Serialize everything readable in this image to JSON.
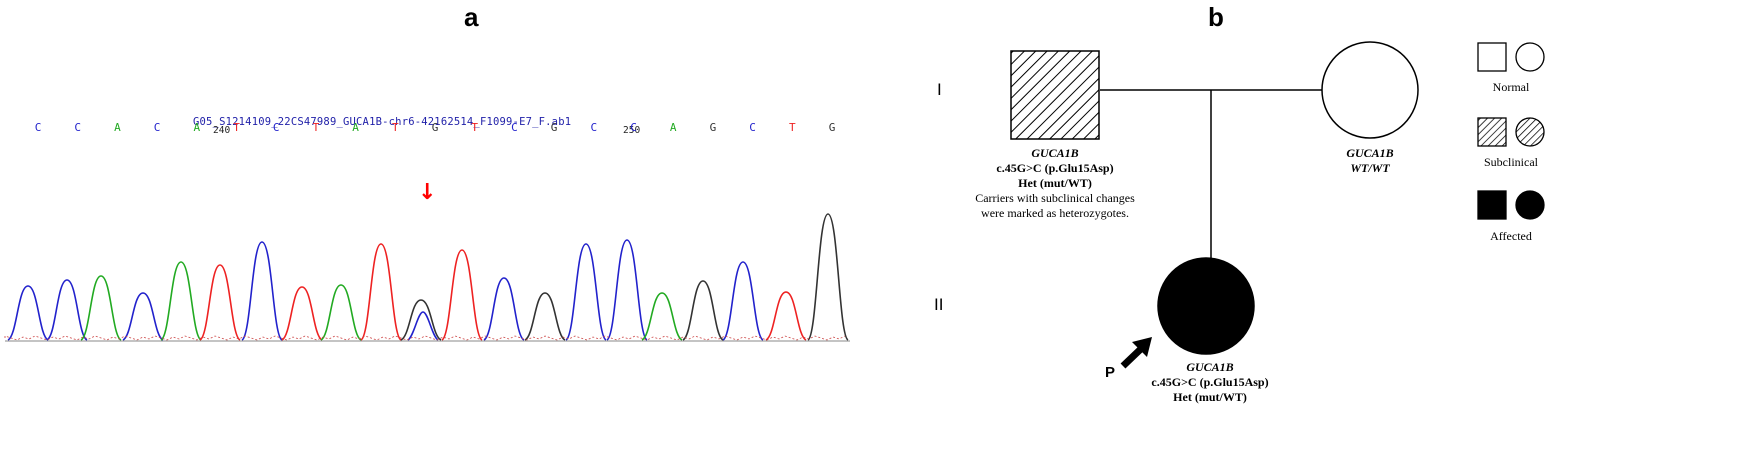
{
  "panel_a": {
    "letter": "a",
    "filename": "G05_S1214109_22CS47989_GUCA1B-chr6-42162514_F1099-E7_F.ab1",
    "position_ticks": [
      "240",
      "250"
    ],
    "bases": [
      "C",
      "C",
      "A",
      "C",
      "A",
      "T",
      "C",
      "T",
      "A",
      "T",
      "G",
      "T",
      "C",
      "G",
      "C",
      "C",
      "A",
      "G",
      "C",
      "T",
      "G"
    ],
    "base_colors": {
      "A": "#22aa22",
      "C": "#2222cc",
      "G": "#333333",
      "T": "#ee2222"
    },
    "arrow_icon": "down-arrow-icon",
    "arrow_color": "#ff0000"
  },
  "panel_b": {
    "letter": "b",
    "generations": [
      "I",
      "II"
    ],
    "father": {
      "gene": "GUCA1B",
      "variant": "c.45G>C (p.Glu15Asp)",
      "zygosity": "Het (mut/WT)",
      "note_line1": "Carriers with subclinical changes",
      "note_line2": "were marked as heterozygotes."
    },
    "mother": {
      "gene": "GUCA1B",
      "genotype": "WT/WT"
    },
    "proband": {
      "marker": "P",
      "gene": "GUCA1B",
      "variant": "c.45G>C (p.Glu15Asp)",
      "zygosity": "Het (mut/WT)"
    },
    "legend": [
      {
        "label": "Normal"
      },
      {
        "label": "Subclinical"
      },
      {
        "label": "Affected"
      }
    ]
  }
}
